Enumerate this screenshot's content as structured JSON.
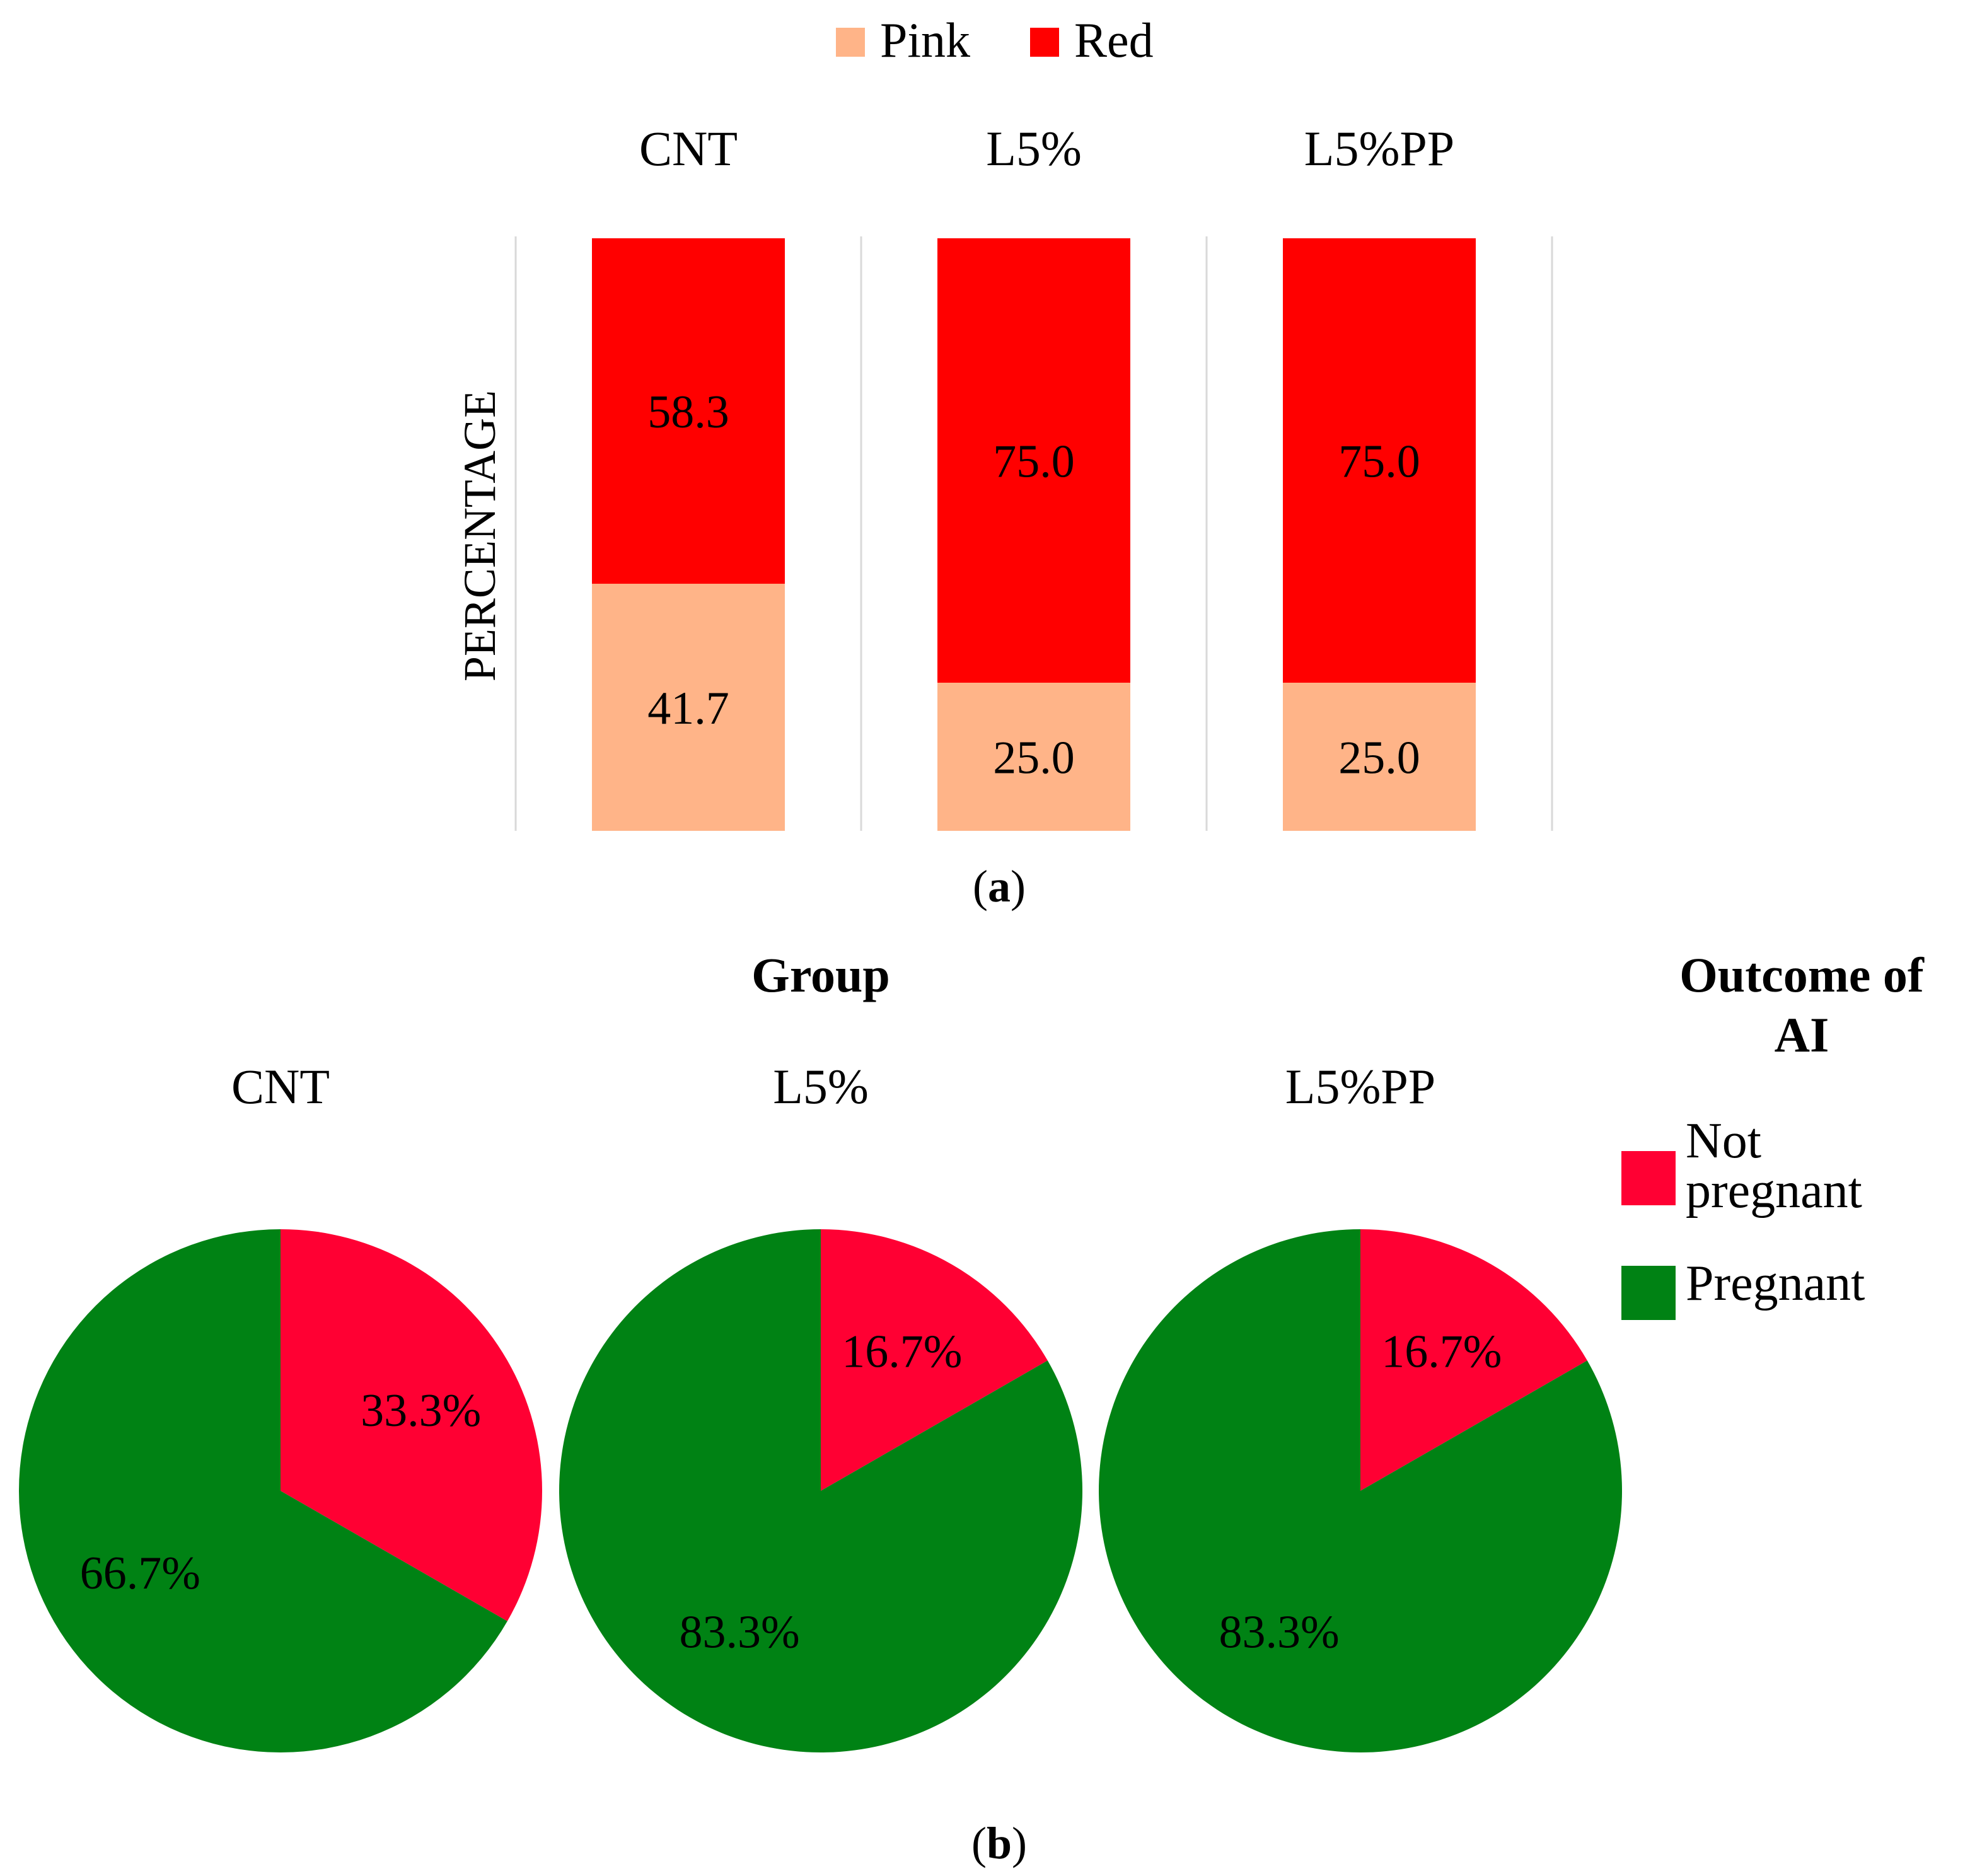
{
  "chart_data": [
    {
      "type": "bar",
      "stacked": true,
      "percent_stacked": true,
      "ylabel": "PERCENTAGE",
      "categories": [
        "CNT",
        "L5%",
        "L5%PP"
      ],
      "series": [
        {
          "name": "Pink",
          "color": "#FFB488",
          "values": [
            41.7,
            25.0,
            25.0
          ],
          "labels": [
            "41.7",
            "25.0",
            "25.0"
          ]
        },
        {
          "name": "Red",
          "color": "#FF0000",
          "values": [
            58.3,
            75.0,
            75.0
          ],
          "labels": [
            "58.3",
            "75.0",
            "75.0"
          ]
        }
      ],
      "legend_position": "top-center",
      "caption": "a"
    },
    {
      "type": "pie",
      "group_title": "Group",
      "legend_title": "Outcome of AI",
      "legend_title_lines": [
        "Outcome of",
        "AI"
      ],
      "legend_position": "right",
      "slices": [
        {
          "name": "Not pregnant",
          "name_lines": [
            "Not",
            "pregnant"
          ],
          "color": "#FF0033"
        },
        {
          "name": "Pregnant",
          "name_lines": [
            "Pregnant"
          ],
          "color": "#008214"
        }
      ],
      "pies": [
        {
          "name": "CNT",
          "values": [
            33.3,
            66.7
          ],
          "labels": [
            "33.3%",
            "66.7%"
          ]
        },
        {
          "name": "L5%",
          "values": [
            16.7,
            83.3
          ],
          "labels": [
            "16.7%",
            "83.3%"
          ]
        },
        {
          "name": "L5%PP",
          "values": [
            16.7,
            83.3
          ],
          "labels": [
            "16.7%",
            "83.3%"
          ]
        }
      ],
      "caption": "b"
    }
  ]
}
